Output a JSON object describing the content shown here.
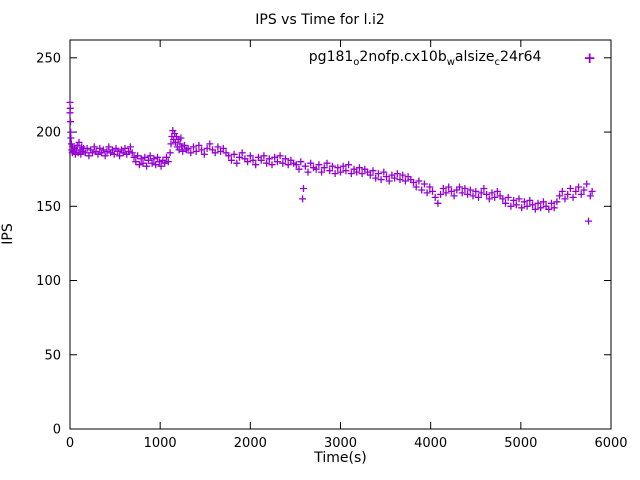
{
  "chart": {
    "title": "IPS vs Time for l.i2",
    "xlabel": "Time(s)",
    "ylabel": "IPS",
    "marker": "+",
    "accent_color": "#9400D3",
    "legend_parts": [
      {
        "text": "pg181",
        "sub": false
      },
      {
        "text": "o",
        "sub": true
      },
      {
        "text": "2nofp.cx10b",
        "sub": false
      },
      {
        "text": "w",
        "sub": true
      },
      {
        "text": "alsize",
        "sub": false
      },
      {
        "text": "c",
        "sub": true
      },
      {
        "text": "24r64",
        "sub": false
      }
    ]
  },
  "chart_data": {
    "type": "scatter",
    "title": "IPS vs Time for l.i2",
    "xlabel": "Time(s)",
    "ylabel": "IPS",
    "xlim": [
      0,
      6000
    ],
    "ylim": [
      0,
      262
    ],
    "xticks": [
      0,
      1000,
      2000,
      3000,
      4000,
      5000,
      6000
    ],
    "yticks": [
      0,
      50,
      100,
      150,
      200,
      250
    ],
    "grid": false,
    "legend_position": "top-center-inside",
    "series": [
      {
        "name": "pg181_o2nofp.cx10b_walsize_c24r64",
        "marker": "+",
        "color": "#9400D3",
        "points": [
          [
            0,
            220
          ],
          [
            0,
            213
          ],
          [
            3,
            216
          ],
          [
            5,
            207
          ],
          [
            8,
            200
          ],
          [
            10,
            196
          ],
          [
            15,
            192
          ],
          [
            20,
            188
          ],
          [
            25,
            186
          ],
          [
            30,
            190
          ],
          [
            40,
            187
          ],
          [
            50,
            189
          ],
          [
            60,
            185
          ],
          [
            70,
            188
          ],
          [
            80,
            191
          ],
          [
            90,
            186
          ],
          [
            100,
            193
          ],
          [
            110,
            188
          ],
          [
            120,
            185
          ],
          [
            130,
            190
          ],
          [
            140,
            187
          ],
          [
            150,
            189
          ],
          [
            170,
            186
          ],
          [
            190,
            189
          ],
          [
            210,
            184
          ],
          [
            230,
            188
          ],
          [
            250,
            186
          ],
          [
            270,
            190
          ],
          [
            290,
            187
          ],
          [
            310,
            185
          ],
          [
            330,
            189
          ],
          [
            350,
            186
          ],
          [
            370,
            188
          ],
          [
            390,
            184
          ],
          [
            410,
            187
          ],
          [
            430,
            190
          ],
          [
            450,
            186
          ],
          [
            470,
            188
          ],
          [
            490,
            185
          ],
          [
            510,
            189
          ],
          [
            530,
            187
          ],
          [
            550,
            184
          ],
          [
            570,
            188
          ],
          [
            590,
            186
          ],
          [
            610,
            189
          ],
          [
            630,
            185
          ],
          [
            650,
            187
          ],
          [
            670,
            190
          ],
          [
            690,
            186
          ],
          [
            710,
            183
          ],
          [
            730,
            180
          ],
          [
            750,
            184
          ],
          [
            770,
            178
          ],
          [
            790,
            182
          ],
          [
            810,
            179
          ],
          [
            830,
            183
          ],
          [
            850,
            177
          ],
          [
            870,
            181
          ],
          [
            890,
            184
          ],
          [
            910,
            179
          ],
          [
            930,
            182
          ],
          [
            950,
            178
          ],
          [
            970,
            183
          ],
          [
            990,
            180
          ],
          [
            1010,
            177
          ],
          [
            1030,
            181
          ],
          [
            1050,
            179
          ],
          [
            1070,
            183
          ],
          [
            1090,
            180
          ],
          [
            1110,
            186
          ],
          [
            1120,
            192
          ],
          [
            1130,
            197
          ],
          [
            1140,
            201
          ],
          [
            1150,
            195
          ],
          [
            1160,
            199
          ],
          [
            1170,
            193
          ],
          [
            1180,
            197
          ],
          [
            1190,
            190
          ],
          [
            1200,
            195
          ],
          [
            1210,
            188
          ],
          [
            1220,
            192
          ],
          [
            1230,
            196
          ],
          [
            1240,
            190
          ],
          [
            1250,
            187
          ],
          [
            1270,
            191
          ],
          [
            1290,
            188
          ],
          [
            1310,
            189
          ],
          [
            1340,
            186
          ],
          [
            1370,
            190
          ],
          [
            1400,
            187
          ],
          [
            1430,
            191
          ],
          [
            1460,
            188
          ],
          [
            1490,
            185
          ],
          [
            1520,
            189
          ],
          [
            1550,
            192
          ],
          [
            1580,
            188
          ],
          [
            1610,
            186
          ],
          [
            1640,
            190
          ],
          [
            1670,
            187
          ],
          [
            1700,
            189
          ],
          [
            1730,
            186
          ],
          [
            1760,
            184
          ],
          [
            1790,
            181
          ],
          [
            1820,
            185
          ],
          [
            1850,
            179
          ],
          [
            1880,
            183
          ],
          [
            1910,
            186
          ],
          [
            1940,
            182
          ],
          [
            1970,
            180
          ],
          [
            2000,
            184
          ],
          [
            2030,
            181
          ],
          [
            2060,
            178
          ],
          [
            2090,
            183
          ],
          [
            2120,
            181
          ],
          [
            2150,
            184
          ],
          [
            2180,
            179
          ],
          [
            2210,
            182
          ],
          [
            2240,
            178
          ],
          [
            2270,
            183
          ],
          [
            2300,
            180
          ],
          [
            2330,
            184
          ],
          [
            2360,
            179
          ],
          [
            2390,
            182
          ],
          [
            2420,
            178
          ],
          [
            2450,
            181
          ],
          [
            2480,
            179
          ],
          [
            2510,
            178
          ],
          [
            2540,
            175
          ],
          [
            2560,
            180
          ],
          [
            2580,
            155
          ],
          [
            2590,
            162
          ],
          [
            2610,
            177
          ],
          [
            2640,
            173
          ],
          [
            2670,
            179
          ],
          [
            2700,
            176
          ],
          [
            2730,
            175
          ],
          [
            2760,
            178
          ],
          [
            2790,
            173
          ],
          [
            2820,
            176
          ],
          [
            2850,
            179
          ],
          [
            2880,
            174
          ],
          [
            2910,
            177
          ],
          [
            2940,
            172
          ],
          [
            2970,
            176
          ],
          [
            3000,
            173
          ],
          [
            3030,
            177
          ],
          [
            3060,
            174
          ],
          [
            3090,
            178
          ],
          [
            3120,
            172
          ],
          [
            3150,
            175
          ],
          [
            3180,
            173
          ],
          [
            3210,
            176
          ],
          [
            3240,
            172
          ],
          [
            3270,
            175
          ],
          [
            3300,
            173
          ],
          [
            3330,
            171
          ],
          [
            3360,
            174
          ],
          [
            3390,
            169
          ],
          [
            3420,
            172
          ],
          [
            3450,
            168
          ],
          [
            3480,
            173
          ],
          [
            3510,
            170
          ],
          [
            3540,
            167
          ],
          [
            3570,
            171
          ],
          [
            3600,
            169
          ],
          [
            3630,
            172
          ],
          [
            3660,
            168
          ],
          [
            3690,
            171
          ],
          [
            3720,
            167
          ],
          [
            3750,
            170
          ],
          [
            3780,
            168
          ],
          [
            3810,
            166
          ],
          [
            3840,
            163
          ],
          [
            3870,
            167
          ],
          [
            3900,
            161
          ],
          [
            3930,
            165
          ],
          [
            3960,
            159
          ],
          [
            3990,
            163
          ],
          [
            4020,
            160
          ],
          [
            4050,
            156
          ],
          [
            4080,
            152
          ],
          [
            4110,
            158
          ],
          [
            4140,
            162
          ],
          [
            4170,
            159
          ],
          [
            4200,
            163
          ],
          [
            4230,
            160
          ],
          [
            4260,
            157
          ],
          [
            4290,
            161
          ],
          [
            4320,
            163
          ],
          [
            4350,
            159
          ],
          [
            4380,
            162
          ],
          [
            4410,
            158
          ],
          [
            4440,
            161
          ],
          [
            4470,
            157
          ],
          [
            4500,
            160
          ],
          [
            4530,
            156
          ],
          [
            4560,
            159
          ],
          [
            4590,
            162
          ],
          [
            4620,
            158
          ],
          [
            4650,
            155
          ],
          [
            4680,
            159
          ],
          [
            4710,
            156
          ],
          [
            4740,
            160
          ],
          [
            4770,
            157
          ],
          [
            4800,
            155
          ],
          [
            4830,
            152
          ],
          [
            4860,
            156
          ],
          [
            4890,
            150
          ],
          [
            4920,
            154
          ],
          [
            4950,
            151
          ],
          [
            4980,
            155
          ],
          [
            5010,
            149
          ],
          [
            5040,
            153
          ],
          [
            5070,
            150
          ],
          [
            5100,
            154
          ],
          [
            5130,
            151
          ],
          [
            5160,
            148
          ],
          [
            5190,
            152
          ],
          [
            5220,
            149
          ],
          [
            5250,
            153
          ],
          [
            5280,
            150
          ],
          [
            5310,
            148
          ],
          [
            5340,
            152
          ],
          [
            5370,
            149
          ],
          [
            5400,
            153
          ],
          [
            5430,
            157
          ],
          [
            5460,
            160
          ],
          [
            5490,
            155
          ],
          [
            5520,
            158
          ],
          [
            5550,
            162
          ],
          [
            5580,
            156
          ],
          [
            5610,
            160
          ],
          [
            5640,
            163
          ],
          [
            5670,
            158
          ],
          [
            5700,
            161
          ],
          [
            5730,
            165
          ],
          [
            5750,
            140
          ],
          [
            5770,
            157
          ],
          [
            5790,
            160
          ]
        ]
      }
    ]
  }
}
